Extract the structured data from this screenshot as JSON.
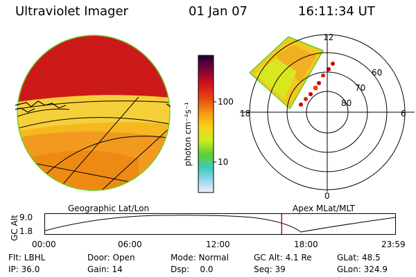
{
  "header": {
    "instrument": "Ultraviolet Imager",
    "date": "01 Jan 07",
    "time": "16:11:34 UT"
  },
  "colorbar": {
    "label": "photon cm⁻²s⁻¹",
    "ticks": [
      "100",
      "10"
    ]
  },
  "polar_plot": {
    "mlt_labels": [
      "12",
      "18",
      "6",
      "0"
    ],
    "lat_labels": [
      "60",
      "70",
      "80"
    ]
  },
  "orbit": {
    "left_caption": "Geographic Lat/Lon",
    "right_caption": "Apex MLat/MLT",
    "ylabel": "GC Alt",
    "y_ticks": [
      "9.0",
      "1.8"
    ],
    "x_ticks": [
      "00:00",
      "06:00",
      "12:00",
      "18:00",
      "23:59"
    ],
    "marker_time_hours": 16.19
  },
  "info": {
    "row1": [
      "Flt: LBHL",
      "Door: Open",
      "Mode: Normal",
      "GC Alt: 4.1 Re",
      "GLat: 48.5"
    ],
    "row2": [
      "IP: 36.0",
      "Gain: 14",
      "Dsp:    0.0",
      "Seq: 39",
      "GLon: 324.9"
    ]
  },
  "colors": {
    "red": "#cc1a1a",
    "orange": "#f08a10",
    "yellow": "#f2c820",
    "lime": "#c8ea20",
    "green": "#40c820",
    "marker": "#cc0000"
  }
}
